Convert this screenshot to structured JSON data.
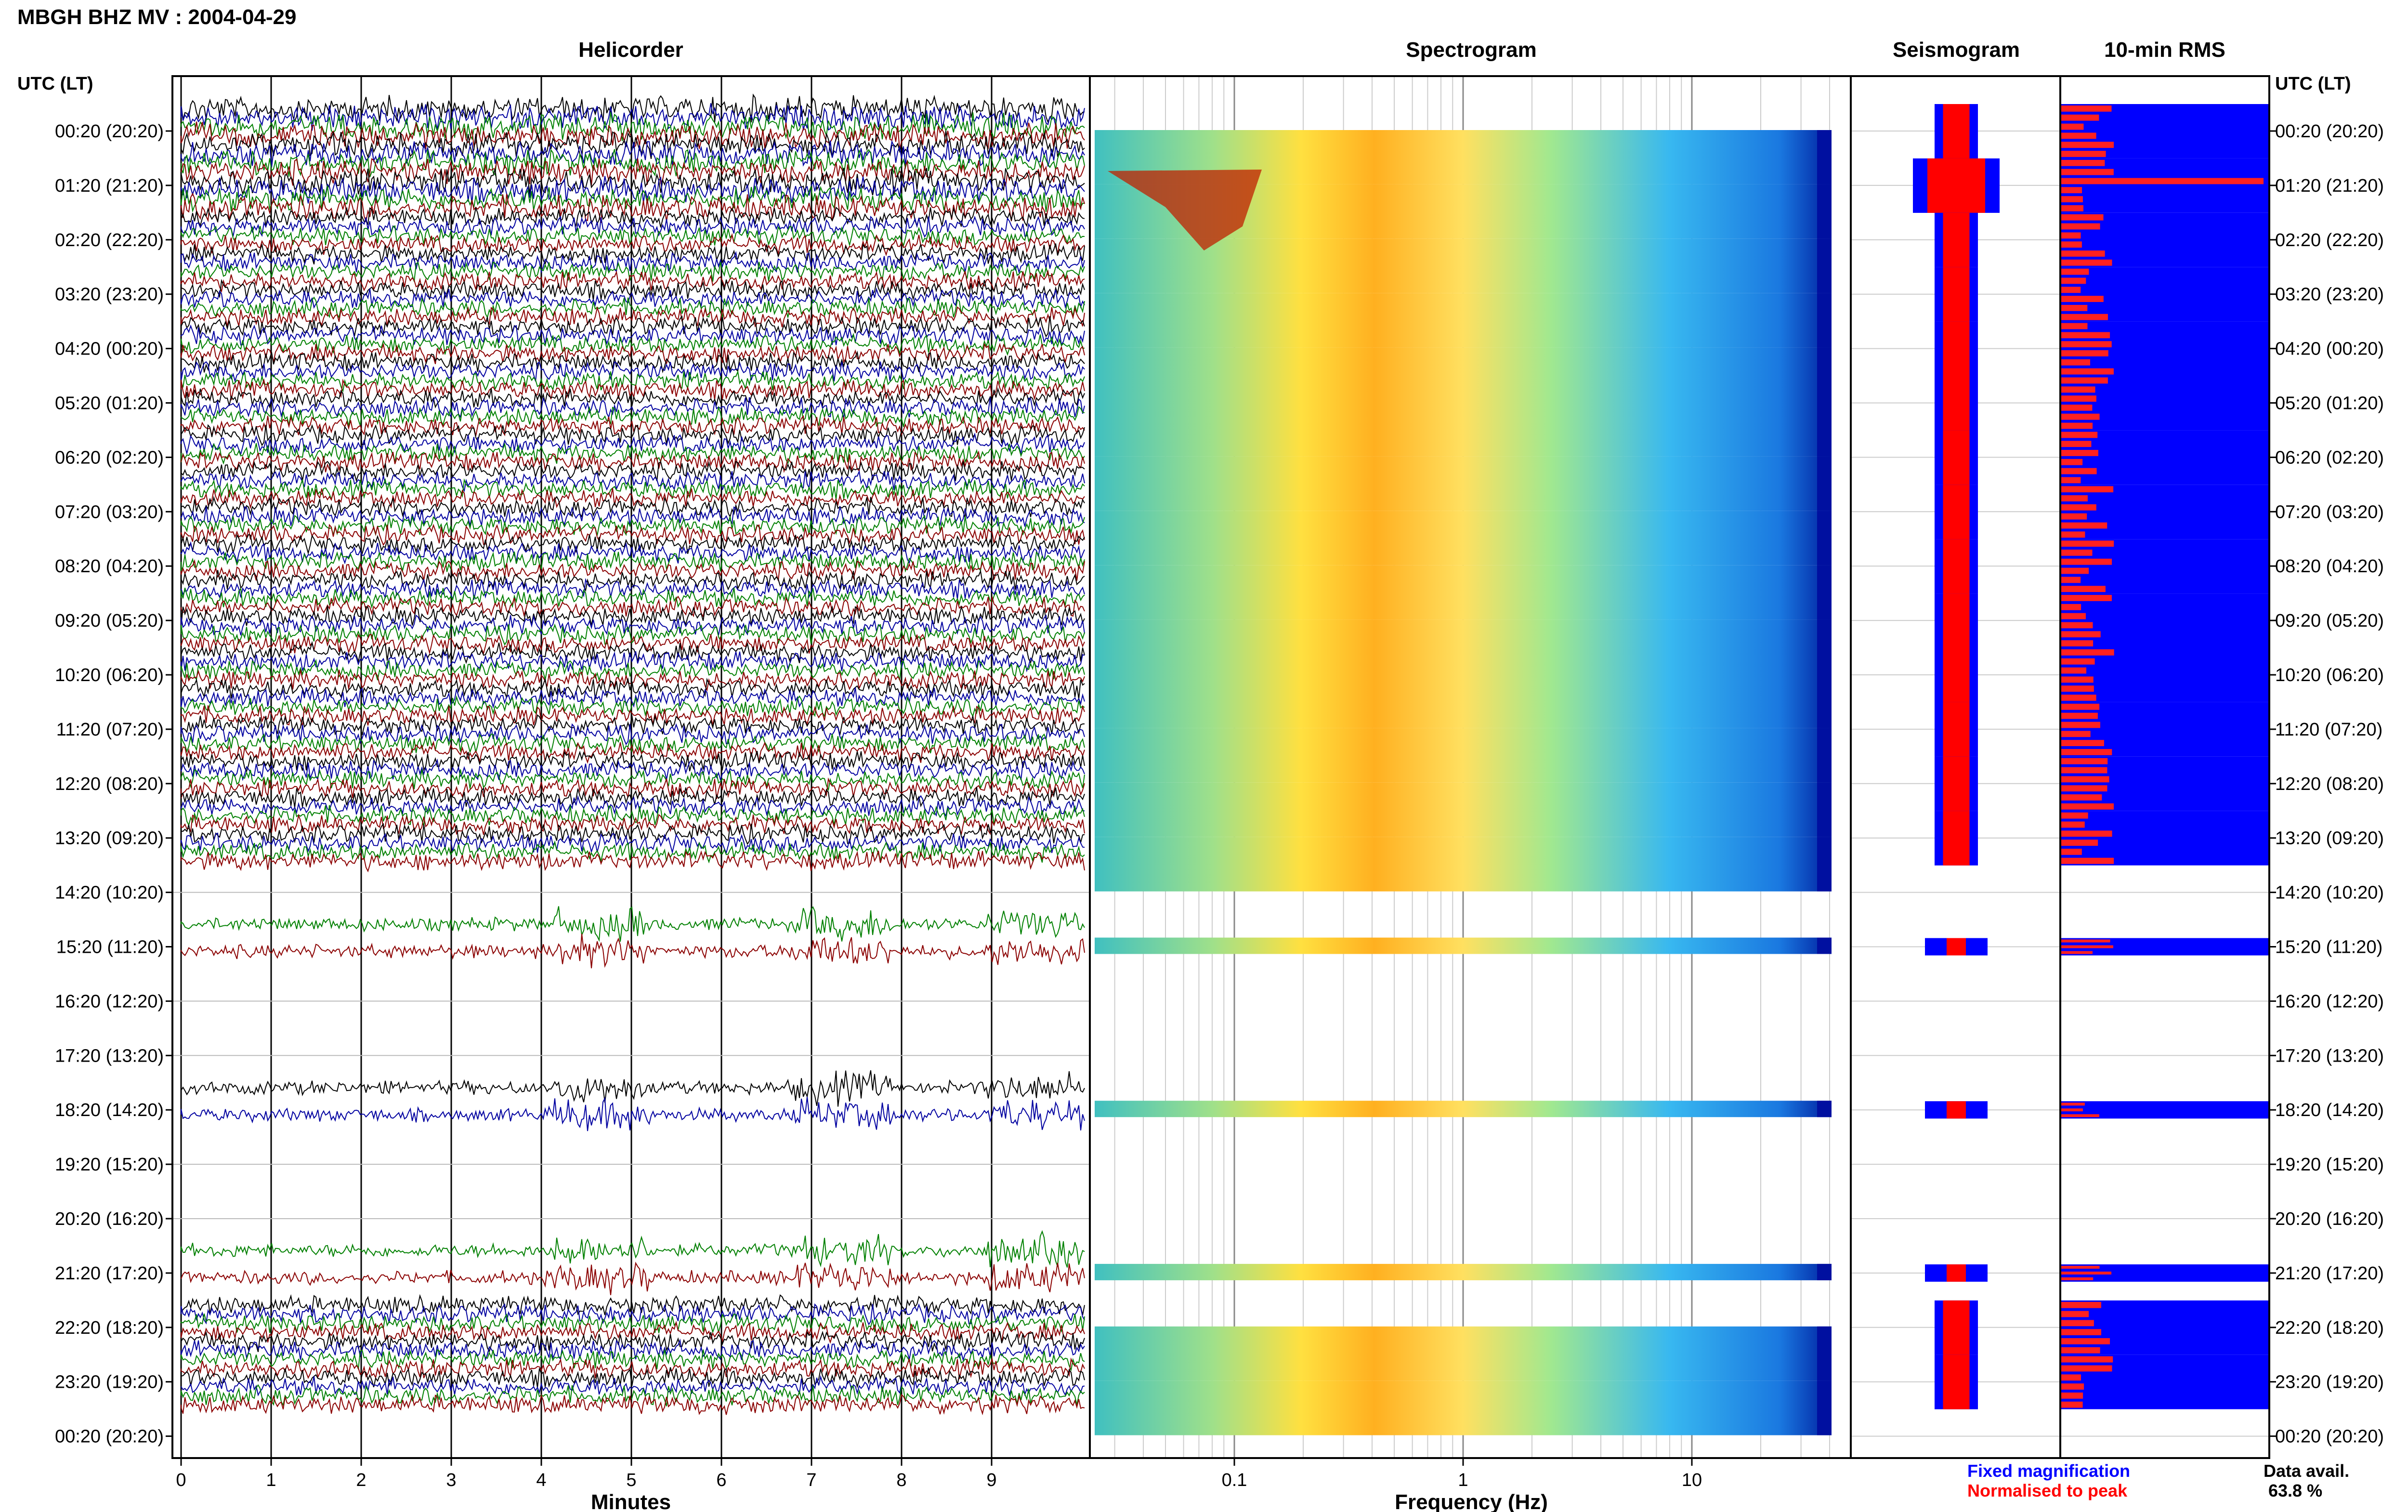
{
  "title": "MBGH BHZ MV : 2004-04-29",
  "row_labels": [
    "00:20 (20:20)",
    "01:20 (21:20)",
    "02:20 (22:20)",
    "03:20 (23:20)",
    "04:20 (00:20)",
    "05:20 (01:20)",
    "06:20 (02:20)",
    "07:20 (03:20)",
    "08:20 (04:20)",
    "09:20 (05:20)",
    "10:20 (06:20)",
    "11:20 (07:20)",
    "12:20 (08:20)",
    "13:20 (09:20)",
    "14:20 (10:20)",
    "15:20 (11:20)",
    "16:20 (12:20)",
    "17:20 (13:20)",
    "18:20 (14:20)",
    "19:20 (15:20)",
    "20:20 (16:20)",
    "21:20 (17:20)",
    "22:20 (18:20)",
    "23:20 (19:20)",
    "00:20 (20:20)"
  ],
  "axis_header_left": "UTC (LT)",
  "axis_header_right": "UTC (LT)",
  "legend": {
    "fixed": "Fixed magnification",
    "normalised": "Normalised to peak",
    "fixed_color": "#0000ff",
    "normalised_color": "#ff0000"
  },
  "data_avail": {
    "label": "Data avail.",
    "value": "63.8 %"
  },
  "colors": {
    "black": "#000000",
    "blue": "#0000a0",
    "green": "#008000",
    "darkred": "#8b0000"
  },
  "chart_data": [
    {
      "type": "line",
      "title": "Helicorder",
      "xlabel": "Minutes",
      "ylabel": "UTC (LT)",
      "xlim": [
        0,
        10
      ],
      "x_ticks": [
        0,
        1,
        2,
        3,
        4,
        5,
        6,
        7,
        8,
        9
      ],
      "grid": true,
      "data_rows_hours": [
        0,
        1,
        2,
        3,
        4,
        5,
        6,
        7,
        8,
        9,
        10,
        11,
        12,
        13,
        15,
        18,
        21,
        22,
        23
      ],
      "gap_hours": [
        14,
        16,
        17,
        19,
        20
      ]
    },
    {
      "type": "heatmap",
      "title": "Spectrogram",
      "xlabel": "Frequency (Hz)",
      "x_scale": "log",
      "x_tick_labels": [
        "0.1",
        "1",
        "10"
      ],
      "x_ticks": [
        0.1,
        1,
        10
      ],
      "xlim": [
        0.02,
        50
      ],
      "grid": true
    },
    {
      "type": "area",
      "title": "Seismogram",
      "series": [
        {
          "name": "Fixed magnification",
          "color": "#0000ff"
        },
        {
          "name": "Normalised to peak",
          "color": "#ff0000"
        }
      ]
    },
    {
      "type": "bar",
      "title": "10-min RMS",
      "series": [
        {
          "name": "Fixed magnification",
          "color": "#0000ff"
        },
        {
          "name": "Normalised to peak",
          "color": "#ff0000"
        }
      ]
    }
  ]
}
